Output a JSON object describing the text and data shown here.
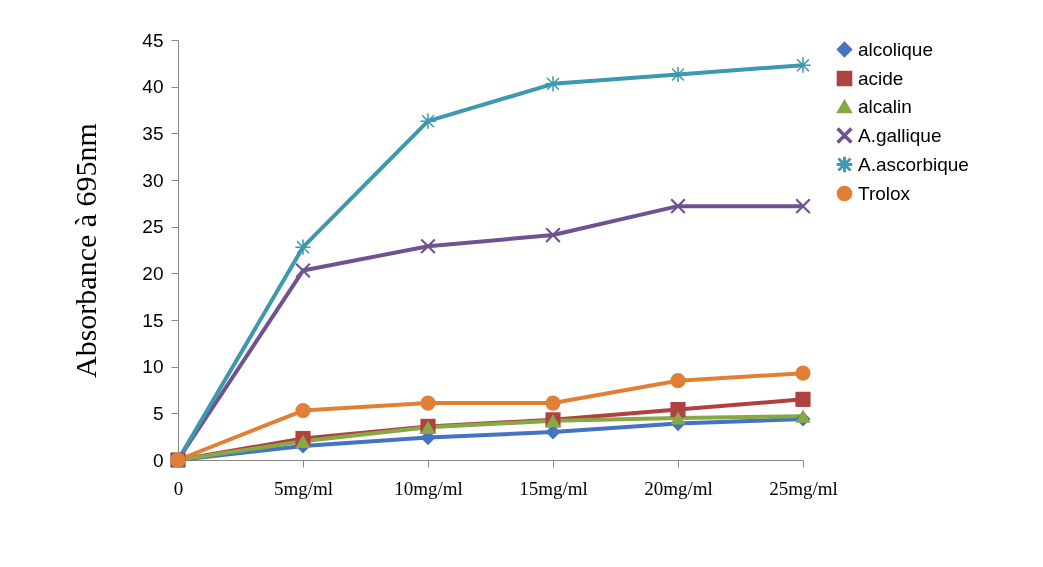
{
  "chart_data": {
    "type": "line",
    "ylabel": "Absorbance à 695nm",
    "categories": [
      "0",
      "5mg/ml",
      "10mg/ml",
      "15mg/ml",
      "20mg/ml",
      "25mg/ml"
    ],
    "ylim": [
      0,
      45
    ],
    "yticks": [
      0,
      5,
      10,
      15,
      20,
      25,
      30,
      35,
      40,
      45
    ],
    "grid": false,
    "legend": "right",
    "line_style": "solid",
    "series": [
      {
        "name": "alcolique",
        "color": "#4472c4",
        "marker": "diamond",
        "values": [
          0,
          1.5,
          2.4,
          3.0,
          3.9,
          4.4
        ]
      },
      {
        "name": "acide",
        "color": "#b0413e",
        "marker": "square",
        "values": [
          0,
          2.3,
          3.6,
          4.3,
          5.4,
          6.5
        ]
      },
      {
        "name": "alcalin",
        "color": "#86a845",
        "marker": "triangle",
        "values": [
          0,
          2.0,
          3.5,
          4.2,
          4.5,
          4.7
        ]
      },
      {
        "name": "A.gallique",
        "color": "#6f5290",
        "marker": "cross",
        "values": [
          0,
          20.3,
          22.9,
          24.1,
          27.2,
          27.2
        ]
      },
      {
        "name": "A.ascorbique",
        "color": "#3d98b0",
        "marker": "star",
        "values": [
          0,
          22.8,
          36.3,
          40.3,
          41.3,
          42.3
        ]
      },
      {
        "name": "Trolox",
        "color": "#e07f35",
        "marker": "circle",
        "values": [
          0,
          5.3,
          6.1,
          6.1,
          8.5,
          9.3
        ]
      }
    ]
  }
}
